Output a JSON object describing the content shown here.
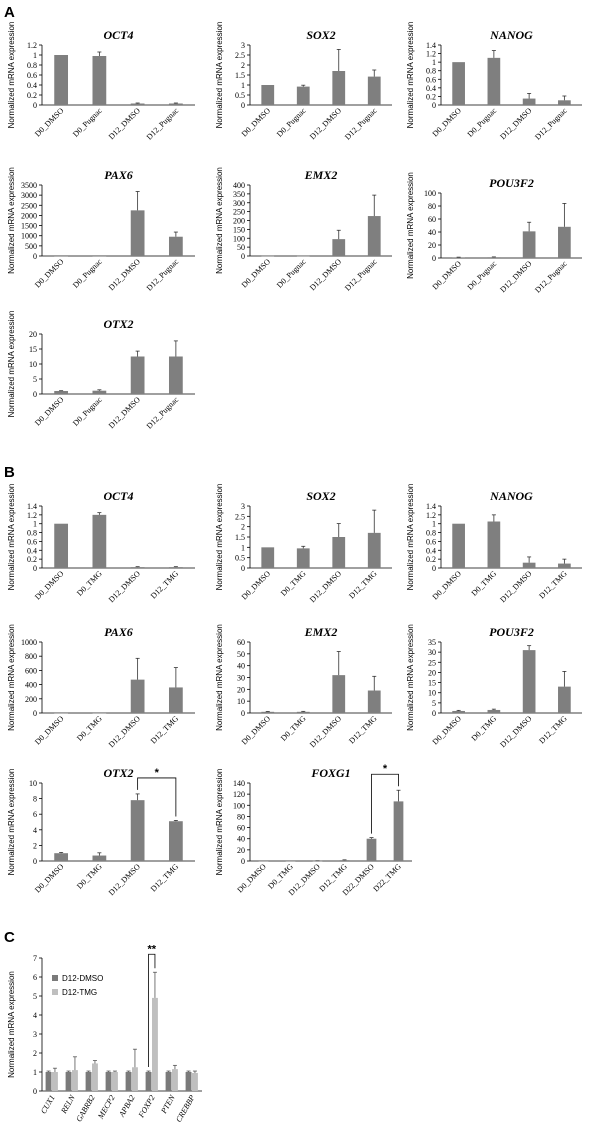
{
  "panels": [
    {
      "label": "A"
    },
    {
      "label": "B"
    },
    {
      "label": "C"
    }
  ],
  "chart_data": [
    {
      "panel": "A",
      "type": "bar",
      "title": "OCT4",
      "ylabel": "Normalized mRNA expression",
      "xlabel": "",
      "categories": [
        "D0_DMSO",
        "D0_Pugnac",
        "D12_DMSO",
        "D12_Pugnac"
      ],
      "values": [
        1.0,
        0.98,
        0.03,
        0.03
      ],
      "errors": [
        0.0,
        0.08,
        0.01,
        0.01
      ],
      "ylim": [
        0,
        1.2
      ],
      "yticks": [
        "0",
        "0.2",
        "0.4",
        "0.6",
        "0.8",
        "1",
        "1.2"
      ],
      "color": "#7f7f7f"
    },
    {
      "panel": "A",
      "type": "bar",
      "title": "SOX2",
      "ylabel": "Normalized mRNA expression",
      "xlabel": "",
      "categories": [
        "D0_DMSO",
        "D0_Pugnac",
        "D12_DMSO",
        "D12_Pugnac"
      ],
      "values": [
        1.0,
        0.92,
        1.7,
        1.42
      ],
      "errors": [
        0.0,
        0.07,
        1.08,
        0.33
      ],
      "ylim": [
        0,
        3
      ],
      "yticks": [
        "0",
        "0.5",
        "1",
        "1.5",
        "2",
        "2.5",
        "3"
      ],
      "color": "#7f7f7f"
    },
    {
      "panel": "A",
      "type": "bar",
      "title": "NANOG",
      "ylabel": "Normalized mRNA expression",
      "xlabel": "",
      "categories": [
        "D0_DMSO",
        "D0_Pugnac",
        "D12_DMSO",
        "D12_Pugnac"
      ],
      "values": [
        1.0,
        1.1,
        0.15,
        0.11
      ],
      "errors": [
        0.0,
        0.17,
        0.12,
        0.1
      ],
      "ylim": [
        0,
        1.4
      ],
      "yticks": [
        "0",
        "0.2",
        "0.4",
        "0.6",
        "0.8",
        "1",
        "1.2",
        "1.4"
      ],
      "color": "#7f7f7f"
    },
    {
      "panel": "A",
      "type": "bar",
      "title": "PAX6",
      "ylabel": "Normalized mRNA expression",
      "xlabel": "",
      "categories": [
        "D0_DMSO",
        "D0_Pugnac",
        "D12_DMSO",
        "D12_Pugnac"
      ],
      "values": [
        1,
        1,
        2250,
        950
      ],
      "errors": [
        0,
        0,
        930,
        230
      ],
      "ylim": [
        0,
        3500
      ],
      "yticks": [
        "0",
        "500",
        "1000",
        "1500",
        "2000",
        "2500",
        "3000",
        "3500"
      ],
      "color": "#7f7f7f"
    },
    {
      "panel": "A",
      "type": "bar",
      "title": "EMX2",
      "ylabel": "Normalized mRNA expression",
      "xlabel": "",
      "categories": [
        "D0_DMSO",
        "D0_Pugnac",
        "D12_DMSO",
        "D12_Pugnac"
      ],
      "values": [
        1,
        1,
        95,
        225
      ],
      "errors": [
        0,
        0,
        50,
        118
      ],
      "ylim": [
        0,
        400
      ],
      "yticks": [
        "0",
        "50",
        "100",
        "150",
        "200",
        "250",
        "300",
        "350",
        "400"
      ],
      "color": "#7f7f7f"
    },
    {
      "panel": "A",
      "type": "bar",
      "title": "POU3F2",
      "ylabel": "Normalized mRNA expression",
      "xlabel": "",
      "categories": [
        "D0_DMSO",
        "D0_Pugnac",
        "D12_DMSO",
        "D12_Pugnac"
      ],
      "values": [
        1,
        1.2,
        41,
        48
      ],
      "errors": [
        0.3,
        0.5,
        14,
        36
      ],
      "ylim": [
        0,
        100
      ],
      "yticks": [
        "0",
        "20",
        "40",
        "60",
        "80",
        "100"
      ],
      "color": "#7f7f7f"
    },
    {
      "panel": "A",
      "type": "bar",
      "title": "OTX2",
      "ylabel": "Normalized mRNA expression",
      "xlabel": "",
      "categories": [
        "D0_DMSO",
        "D0_Pugnac",
        "D12_DMSO",
        "D12_Pugnac"
      ],
      "values": [
        1.0,
        1.1,
        12.5,
        12.5
      ],
      "errors": [
        0.1,
        0.3,
        1.8,
        5.2
      ],
      "ylim": [
        0,
        20
      ],
      "yticks": [
        "0",
        "5",
        "10",
        "15",
        "20"
      ],
      "color": "#7f7f7f"
    },
    {
      "panel": "B",
      "type": "bar",
      "title": "OCT4",
      "ylabel": "Normalized mRNA expression",
      "xlabel": "",
      "categories": [
        "D0_DMSO",
        "D0_TMG",
        "D12_DMSO",
        "D12_TMG"
      ],
      "values": [
        1.0,
        1.2,
        0.02,
        0.02
      ],
      "errors": [
        0.0,
        0.05,
        0.01,
        0.01
      ],
      "ylim": [
        0,
        1.4
      ],
      "yticks": [
        "0",
        "0.2",
        "0.4",
        "0.6",
        "0.8",
        "1",
        "1.2",
        "1.4"
      ],
      "color": "#7f7f7f"
    },
    {
      "panel": "B",
      "type": "bar",
      "title": "SOX2",
      "ylabel": "Normalized mRNA expression",
      "xlabel": "",
      "categories": [
        "D0_DMSO",
        "D0_TMG",
        "D12_DMSO",
        "D12_TMG"
      ],
      "values": [
        1.0,
        0.95,
        1.5,
        1.7
      ],
      "errors": [
        0.0,
        0.1,
        0.65,
        1.1
      ],
      "ylim": [
        0,
        3
      ],
      "yticks": [
        "0",
        "0.5",
        "1",
        "1.5",
        "2",
        "2.5",
        "3"
      ],
      "color": "#7f7f7f"
    },
    {
      "panel": "B",
      "type": "bar",
      "title": "NANOG",
      "ylabel": "Normalized mRNA expression",
      "xlabel": "",
      "categories": [
        "D0_DMSO",
        "D0_TMG",
        "D12_DMSO",
        "D12_TMG"
      ],
      "values": [
        1.0,
        1.05,
        0.12,
        0.1
      ],
      "errors": [
        0.0,
        0.15,
        0.13,
        0.1
      ],
      "ylim": [
        0,
        1.4
      ],
      "yticks": [
        "0",
        "0.2",
        "0.4",
        "0.6",
        "0.8",
        "1",
        "1.2",
        "1.4"
      ],
      "color": "#7f7f7f"
    },
    {
      "panel": "B",
      "type": "bar",
      "title": "PAX6",
      "ylabel": "Normalized mRNA expression",
      "xlabel": "",
      "categories": [
        "D0_DMSO",
        "D0_TMG",
        "D12_DMSO",
        "D12_TMG"
      ],
      "values": [
        1,
        1,
        470,
        360
      ],
      "errors": [
        0,
        0,
        300,
        280
      ],
      "ylim": [
        0,
        1000
      ],
      "yticks": [
        "0",
        "200",
        "400",
        "600",
        "800",
        "1000"
      ],
      "color": "#7f7f7f"
    },
    {
      "panel": "B",
      "type": "bar",
      "title": "EMX2",
      "ylabel": "Normalized mRNA expression",
      "xlabel": "",
      "categories": [
        "D0_DMSO",
        "D0_TMG",
        "D12_DMSO",
        "D12_TMG"
      ],
      "values": [
        1,
        1,
        32,
        19
      ],
      "errors": [
        0.3,
        0.4,
        20,
        12
      ],
      "ylim": [
        0,
        60
      ],
      "yticks": [
        "0",
        "10",
        "20",
        "30",
        "40",
        "50",
        "60"
      ],
      "color": "#7f7f7f"
    },
    {
      "panel": "B",
      "type": "bar",
      "title": "POU3F2",
      "ylabel": "Normalized mRNA expression",
      "xlabel": "",
      "categories": [
        "D0_DMSO",
        "D0_TMG",
        "D12_DMSO",
        "D12_TMG"
      ],
      "values": [
        1,
        1.5,
        31,
        13
      ],
      "errors": [
        0.3,
        0.4,
        2.2,
        7.5
      ],
      "ylim": [
        0,
        35
      ],
      "yticks": [
        "0",
        "5",
        "10",
        "15",
        "20",
        "25",
        "30",
        "35"
      ],
      "color": "#7f7f7f"
    },
    {
      "panel": "B",
      "type": "bar",
      "title": "OTX2",
      "ylabel": "Normalized mRNA expression",
      "xlabel": "",
      "categories": [
        "D0_DMSO",
        "D0_TMG",
        "D12_DMSO",
        "D12_TMG"
      ],
      "values": [
        1.0,
        0.7,
        7.8,
        5.1
      ],
      "errors": [
        0.1,
        0.35,
        0.8,
        0.1
      ],
      "ylim": [
        0,
        10
      ],
      "yticks": [
        "0",
        "2",
        "4",
        "6",
        "8",
        "10"
      ],
      "color": "#7f7f7f",
      "significance": [
        {
          "from": 2,
          "to": 3,
          "label": "*"
        }
      ]
    },
    {
      "panel": "B",
      "type": "bar",
      "title": "FOXG1",
      "ylabel": "Normalized mRNA expression",
      "xlabel": "",
      "categories": [
        "D0_DMSO",
        "D0_TMG",
        "D12_DMSO",
        "D12_TMG",
        "D22_DMSO",
        "D22_TMG"
      ],
      "values": [
        0.1,
        0.1,
        0.3,
        1.5,
        40,
        107
      ],
      "errors": [
        0,
        0,
        0.1,
        0.6,
        2,
        20
      ],
      "ylim": [
        0,
        140
      ],
      "yticks": [
        "0",
        "20",
        "40",
        "60",
        "80",
        "100",
        "120",
        "140"
      ],
      "color": "#7f7f7f",
      "significance": [
        {
          "from": 4,
          "to": 5,
          "label": "*"
        }
      ]
    },
    {
      "panel": "C",
      "type": "bar",
      "title": "",
      "ylabel": "Normalized mRNA expression",
      "xlabel": "",
      "categories": [
        "CUX1",
        "RELN",
        "GABRB2",
        "MECP2",
        "APBA2",
        "FOXP2",
        "PTEN",
        "CREBBP"
      ],
      "series": [
        {
          "name": "D12-DMSO",
          "color": "#7a7a7a",
          "values": [
            1,
            1,
            1,
            1,
            1,
            1,
            1,
            1
          ],
          "errors": [
            0.05,
            0.05,
            0.05,
            0.05,
            0.05,
            0.05,
            0.05,
            0.05
          ]
        },
        {
          "name": "D12-TMG",
          "color": "#bfbfbf",
          "values": [
            1.0,
            1.1,
            1.45,
            1.0,
            1.25,
            4.9,
            1.15,
            0.95
          ],
          "errors": [
            0.2,
            0.7,
            0.15,
            0.05,
            0.95,
            1.35,
            0.2,
            0.1
          ]
        }
      ],
      "ylim": [
        0,
        7
      ],
      "yticks": [
        "0",
        "1",
        "2",
        "3",
        "4",
        "5",
        "6",
        "7"
      ],
      "legend_position": "top-left",
      "significance": [
        {
          "category": 5,
          "label": "**"
        }
      ]
    }
  ]
}
